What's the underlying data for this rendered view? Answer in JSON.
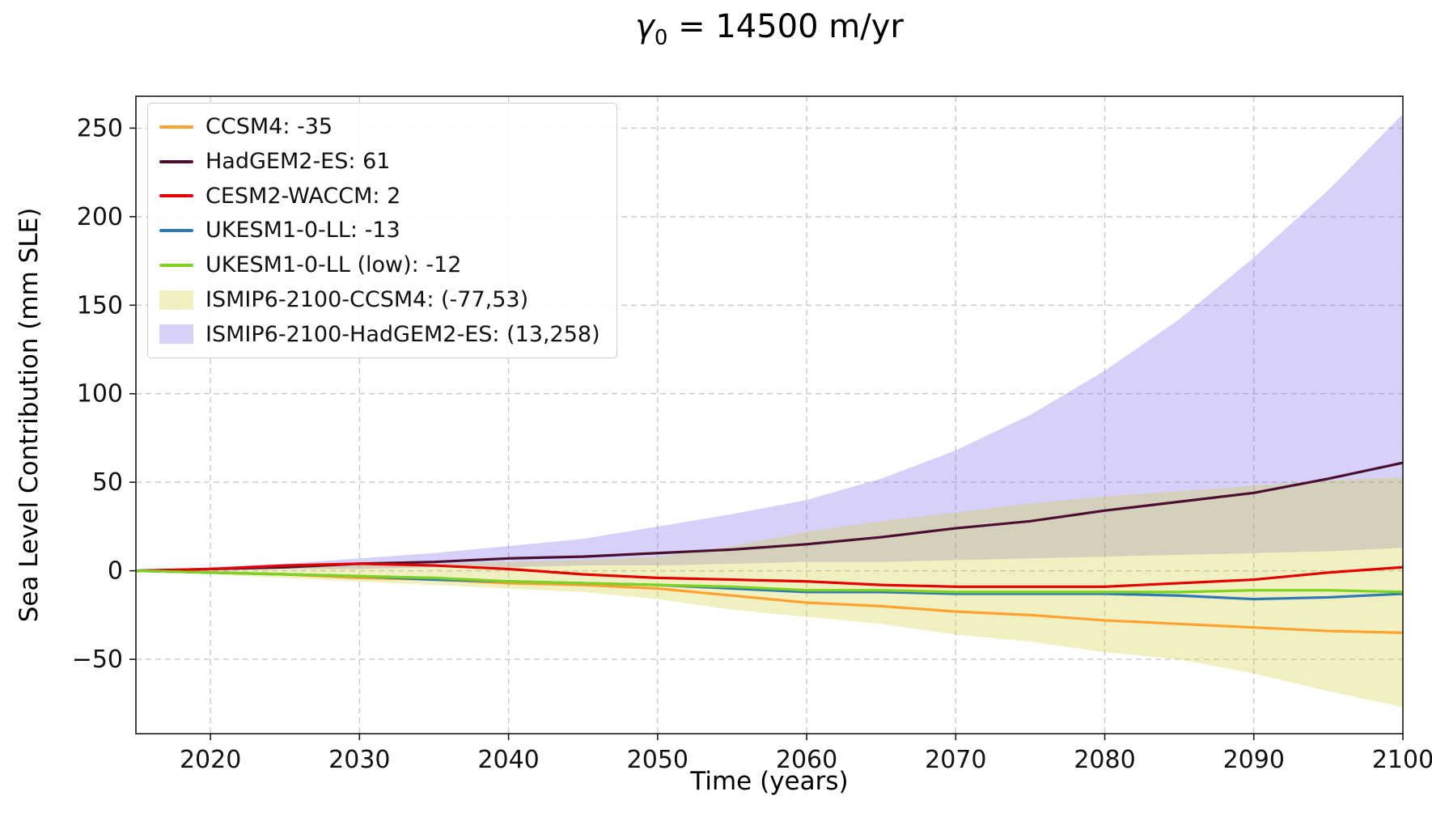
{
  "chart_data": {
    "type": "line",
    "title": "γ₀ = 14500 m/yr",
    "title_parts": {
      "gamma": "γ",
      "sub": "0",
      "rest": " = 14500 m/yr"
    },
    "xlabel": "Time (years)",
    "ylabel": "Sea Level Contribution (mm SLE)",
    "xlim": [
      2015,
      2100
    ],
    "ylim": [
      -92,
      268
    ],
    "xticks": [
      2020,
      2030,
      2040,
      2050,
      2060,
      2070,
      2080,
      2090,
      2100
    ],
    "yticks": [
      -50,
      0,
      50,
      100,
      150,
      200,
      250
    ],
    "grid": "dashed",
    "legend_position": "upper-left",
    "x": [
      2015,
      2020,
      2025,
      2030,
      2035,
      2040,
      2045,
      2050,
      2055,
      2060,
      2065,
      2070,
      2075,
      2080,
      2085,
      2090,
      2095,
      2100
    ],
    "series": [
      {
        "name": "CCSM4",
        "label": "CCSM4: -35",
        "color": "#ffa230",
        "values": [
          0,
          -1,
          -2,
          -4,
          -5,
          -7,
          -8,
          -10,
          -14,
          -18,
          -20,
          -23,
          -25,
          -28,
          -30,
          -32,
          -34,
          -35
        ]
      },
      {
        "name": "HadGEM2-ES",
        "label": "HadGEM2-ES: 61",
        "color": "#4b1030",
        "values": [
          0,
          1,
          2,
          4,
          5,
          7,
          8,
          10,
          12,
          15,
          19,
          24,
          28,
          34,
          39,
          44,
          52,
          61
        ]
      },
      {
        "name": "CESM2-WACCM",
        "label": "CESM2-WACCM: 2",
        "color": "#e50000",
        "values": [
          0,
          1,
          3,
          4,
          3,
          1,
          -2,
          -4,
          -5,
          -6,
          -8,
          -9,
          -9,
          -9,
          -7,
          -5,
          -1,
          2
        ]
      },
      {
        "name": "UKESM1-0-LL",
        "label": "UKESM1-0-LL: -13",
        "color": "#2d7bb5",
        "values": [
          0,
          -1,
          -2,
          -3,
          -5,
          -6,
          -7,
          -8,
          -10,
          -12,
          -12,
          -13,
          -13,
          -13,
          -14,
          -16,
          -15,
          -13
        ]
      },
      {
        "name": "UKESM1-0-LL-low",
        "label": "UKESM1-0-LL (low): -12",
        "color": "#7ed321",
        "values": [
          0,
          -1,
          -2,
          -3,
          -4,
          -6,
          -7,
          -8,
          -9,
          -11,
          -11,
          -12,
          -12,
          -12,
          -12,
          -11,
          -11,
          -12
        ]
      }
    ],
    "bands": [
      {
        "name": "ISMIP6-2100-CCSM4",
        "label": "ISMIP6-2100-CCSM4: (-77,53)",
        "color": "rgba(204,204,51,0.30)",
        "lower": [
          0,
          -2,
          -4,
          -6,
          -8,
          -10,
          -12,
          -16,
          -22,
          -26,
          -30,
          -36,
          -40,
          -46,
          -50,
          -58,
          -68,
          -77
        ],
        "upper": [
          0,
          1,
          2,
          3,
          4,
          5,
          6,
          8,
          14,
          22,
          28,
          33,
          38,
          42,
          45,
          48,
          51,
          53
        ]
      },
      {
        "name": "ISMIP6-2100-HadGEM2-ES",
        "label": "ISMIP6-2100-HadGEM2-ES: (13,258)",
        "color": "rgba(123,104,238,0.30)",
        "lower": [
          0,
          0,
          1,
          1,
          2,
          2,
          3,
          3,
          4,
          5,
          5,
          6,
          7,
          8,
          9,
          10,
          11,
          13
        ],
        "upper": [
          0,
          2,
          4,
          7,
          10,
          14,
          18,
          25,
          32,
          40,
          52,
          68,
          88,
          113,
          142,
          177,
          215,
          258
        ]
      }
    ]
  }
}
